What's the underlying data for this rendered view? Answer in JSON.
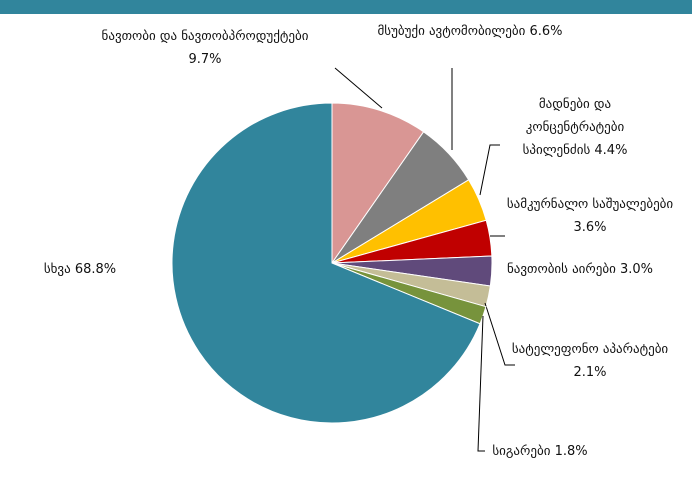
{
  "chart_data": {
    "type": "pie",
    "categories": [
      "ნავთობი და ნავთობპროდუქტები",
      "მსუბუქი ავტომობილები",
      "მადნები და კონცენტრატები სპილენძის",
      "სამკურნალო საშუალებები",
      "ნავთობის აირები",
      "სატელეფონო აპარატები",
      "სიგარები",
      "სხვა"
    ],
    "values": [
      9.7,
      6.6,
      4.4,
      3.6,
      3.0,
      2.1,
      1.8,
      68.8
    ],
    "value_labels": [
      "9.7%",
      "6.6%",
      "4.4%",
      "3.6%",
      "3.0%",
      "2.1%",
      "1.8%",
      "68.8%"
    ],
    "colors": [
      "#d99694",
      "#7f7f7f",
      "#ffc000",
      "#c00000",
      "#604a7b",
      "#c4bd97",
      "#77933c",
      "#31859c"
    ]
  }
}
